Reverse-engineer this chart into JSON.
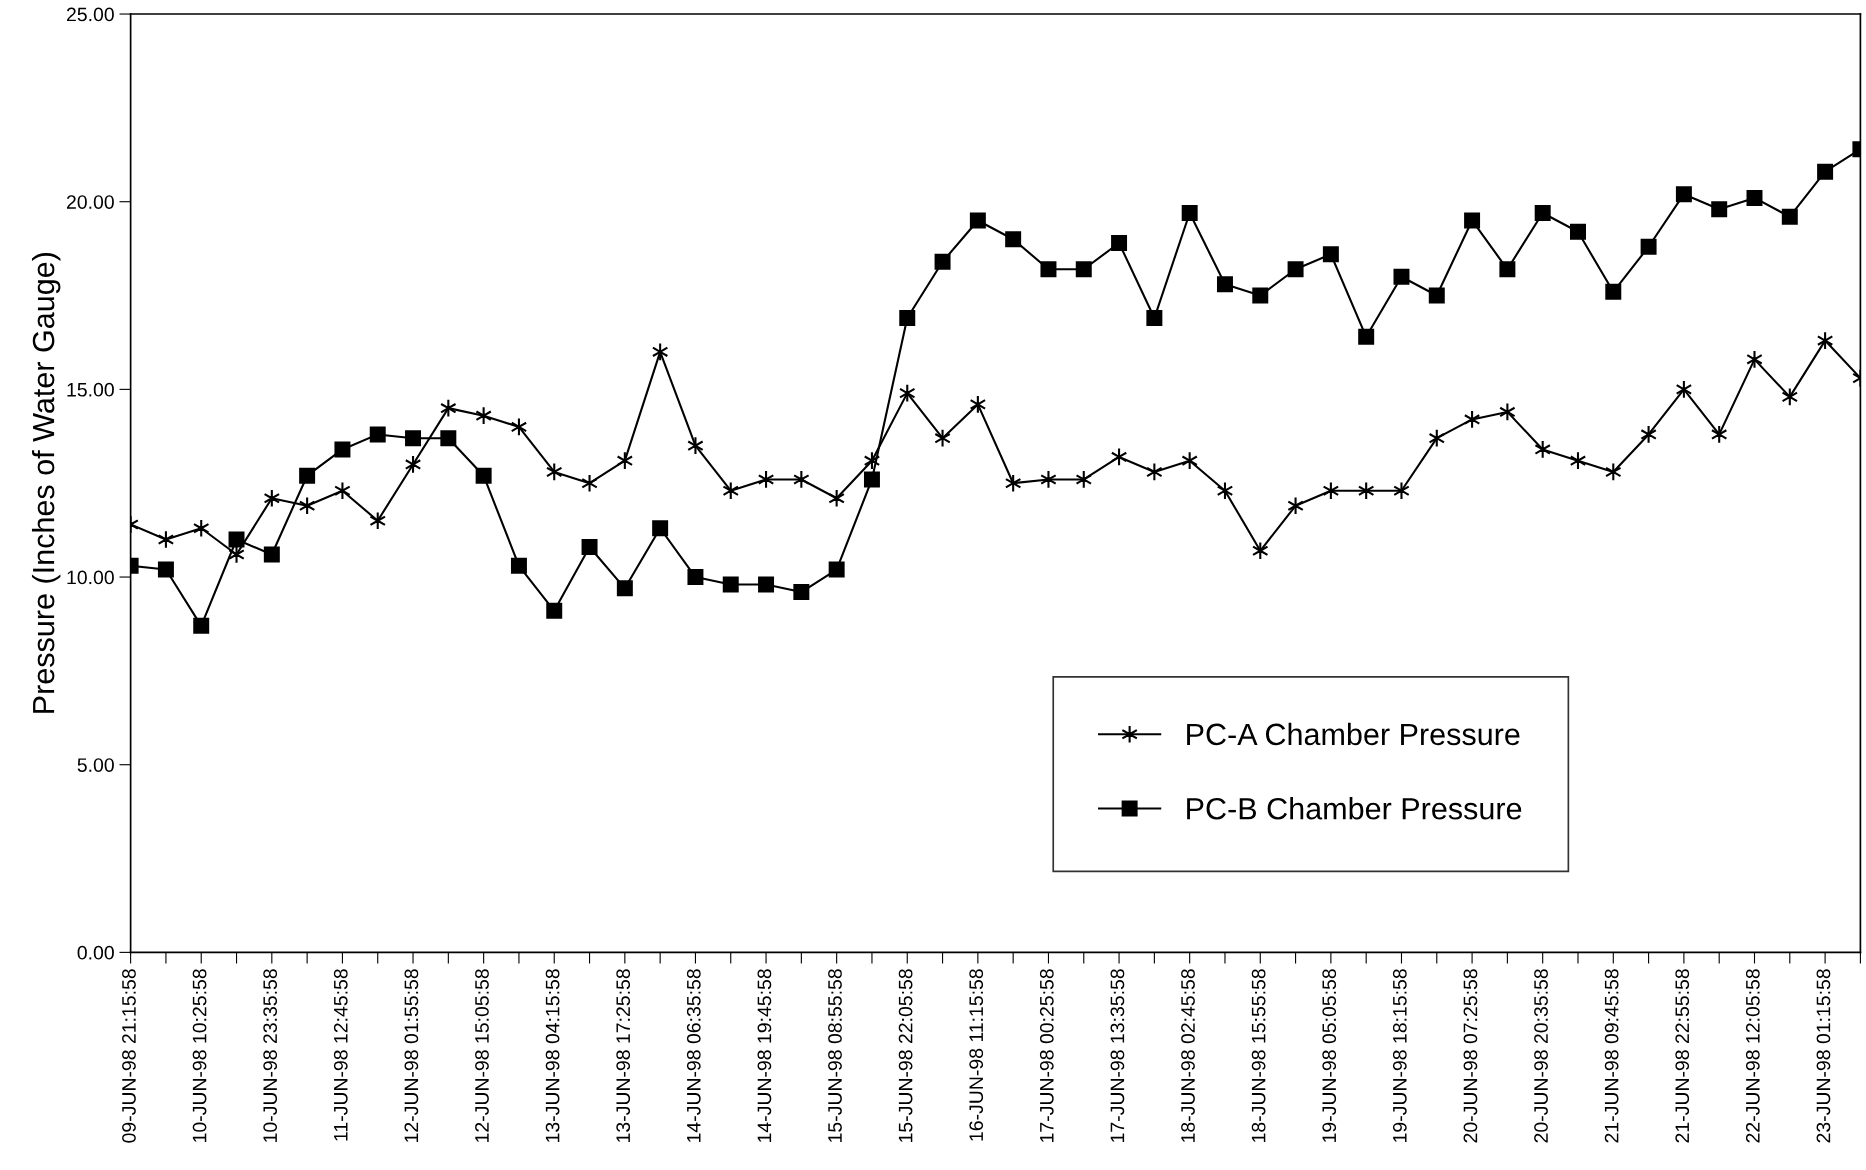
{
  "chart_data": {
    "type": "line",
    "ylabel": "Pressure (Inches of Water Gauge)",
    "categories": [
      "09-JUN-98 21:15:58",
      null,
      "10-JUN-98 10:25:58",
      null,
      "10-JUN-98 23:35:58",
      null,
      "11-JUN-98 12:45:58",
      null,
      "12-JUN-98 01:55:58",
      null,
      "12-JUN-98 15:05:58",
      null,
      "13-JUN-98 04:15:58",
      null,
      "13-JUN-98 17:25:58",
      null,
      "14-JUN-98 06:35:58",
      null,
      "14-JUN-98 19:45:58",
      null,
      "15-JUN-98 08:55:58",
      null,
      "15-JUN-98 22:05:58",
      null,
      "16-JUN-98 11:15:58",
      null,
      "17-JUN-98 00:25:58",
      null,
      "17-JUN-98 13:35:58",
      null,
      "18-JUN-98 02:45:58",
      null,
      "18-JUN-98 15:55:58",
      null,
      "19-JUN-98 05:05:58",
      null,
      "19-JUN-98 18:15:58",
      null,
      "20-JUN-98 07:25:58",
      null,
      "20-JUN-98 20:35:58",
      null,
      "21-JUN-98 09:45:58",
      null,
      "21-JUN-98 22:55:58",
      null,
      "22-JUN-98 12:05:58",
      null,
      "23-JUN-98 01:15:58",
      null
    ],
    "series": [
      {
        "name": "PC-A Chamber Pressure",
        "color": "#000000",
        "marker": "cross",
        "values": [
          11.4,
          11.0,
          11.3,
          10.6,
          12.1,
          11.9,
          12.3,
          11.5,
          13.0,
          14.5,
          14.3,
          14.0,
          12.8,
          12.5,
          13.1,
          16.0,
          13.5,
          12.3,
          12.6,
          12.6,
          12.1,
          13.1,
          14.9,
          13.7,
          14.6,
          12.5,
          12.6,
          12.6,
          13.2,
          12.8,
          13.1,
          12.3,
          10.7,
          11.9,
          12.3,
          12.3,
          12.3,
          13.7,
          14.2,
          14.4,
          13.4,
          13.1,
          12.8,
          13.8,
          15.0,
          13.8,
          15.8,
          14.8,
          16.3,
          15.3
        ]
      },
      {
        "name": "PC-B Chamber Pressure",
        "color": "#000000",
        "marker": "square",
        "values": [
          10.3,
          10.2,
          8.7,
          11.0,
          10.6,
          12.7,
          13.4,
          13.8,
          13.7,
          13.7,
          12.7,
          10.3,
          9.1,
          10.8,
          9.7,
          11.3,
          10.0,
          9.8,
          9.8,
          9.6,
          10.2,
          12.6,
          16.9,
          18.4,
          19.5,
          19.0,
          18.2,
          18.2,
          18.9,
          16.9,
          19.7,
          17.8,
          17.5,
          18.2,
          18.6,
          16.4,
          18.0,
          17.5,
          19.5,
          18.2,
          19.7,
          19.2,
          17.6,
          18.8,
          20.2,
          19.8,
          20.1,
          19.6,
          20.8,
          21.4
        ]
      }
    ],
    "ylim": [
      0,
      25
    ],
    "yticks": [
      {
        "value": 0,
        "label": "0.00"
      },
      {
        "value": 5,
        "label": "5.00"
      },
      {
        "value": 10,
        "label": "10.00"
      },
      {
        "value": 15,
        "label": "15.00"
      },
      {
        "value": 20,
        "label": "20.00"
      },
      {
        "value": 25,
        "label": "25.00"
      }
    ],
    "grid": false,
    "legend": "bottom right",
    "line_style": "solid"
  }
}
